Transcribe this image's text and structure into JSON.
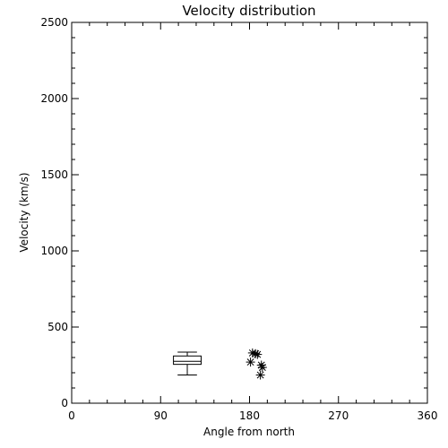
{
  "chart_data": {
    "type": "scatter",
    "title": "Velocity distribution",
    "xlabel": "Angle from north",
    "ylabel": "Velocity (km/s)",
    "xlim": [
      0,
      360
    ],
    "ylim": [
      0,
      2500
    ],
    "xticks": [
      0,
      90,
      180,
      270,
      360
    ],
    "yticks": [
      0,
      500,
      1000,
      1500,
      2000,
      2500
    ],
    "grid": false,
    "boxplot": {
      "x_range": [
        103,
        131
      ],
      "min": 185,
      "q1": 255,
      "median": 275,
      "q3": 310,
      "max": 335
    },
    "points": [
      {
        "x": 181,
        "y": 270
      },
      {
        "x": 183,
        "y": 330
      },
      {
        "x": 186,
        "y": 325
      },
      {
        "x": 188,
        "y": 320
      },
      {
        "x": 191,
        "y": 185
      },
      {
        "x": 192,
        "y": 250
      },
      {
        "x": 193,
        "y": 235
      }
    ],
    "marker": "asterisk",
    "color": "#000000"
  }
}
